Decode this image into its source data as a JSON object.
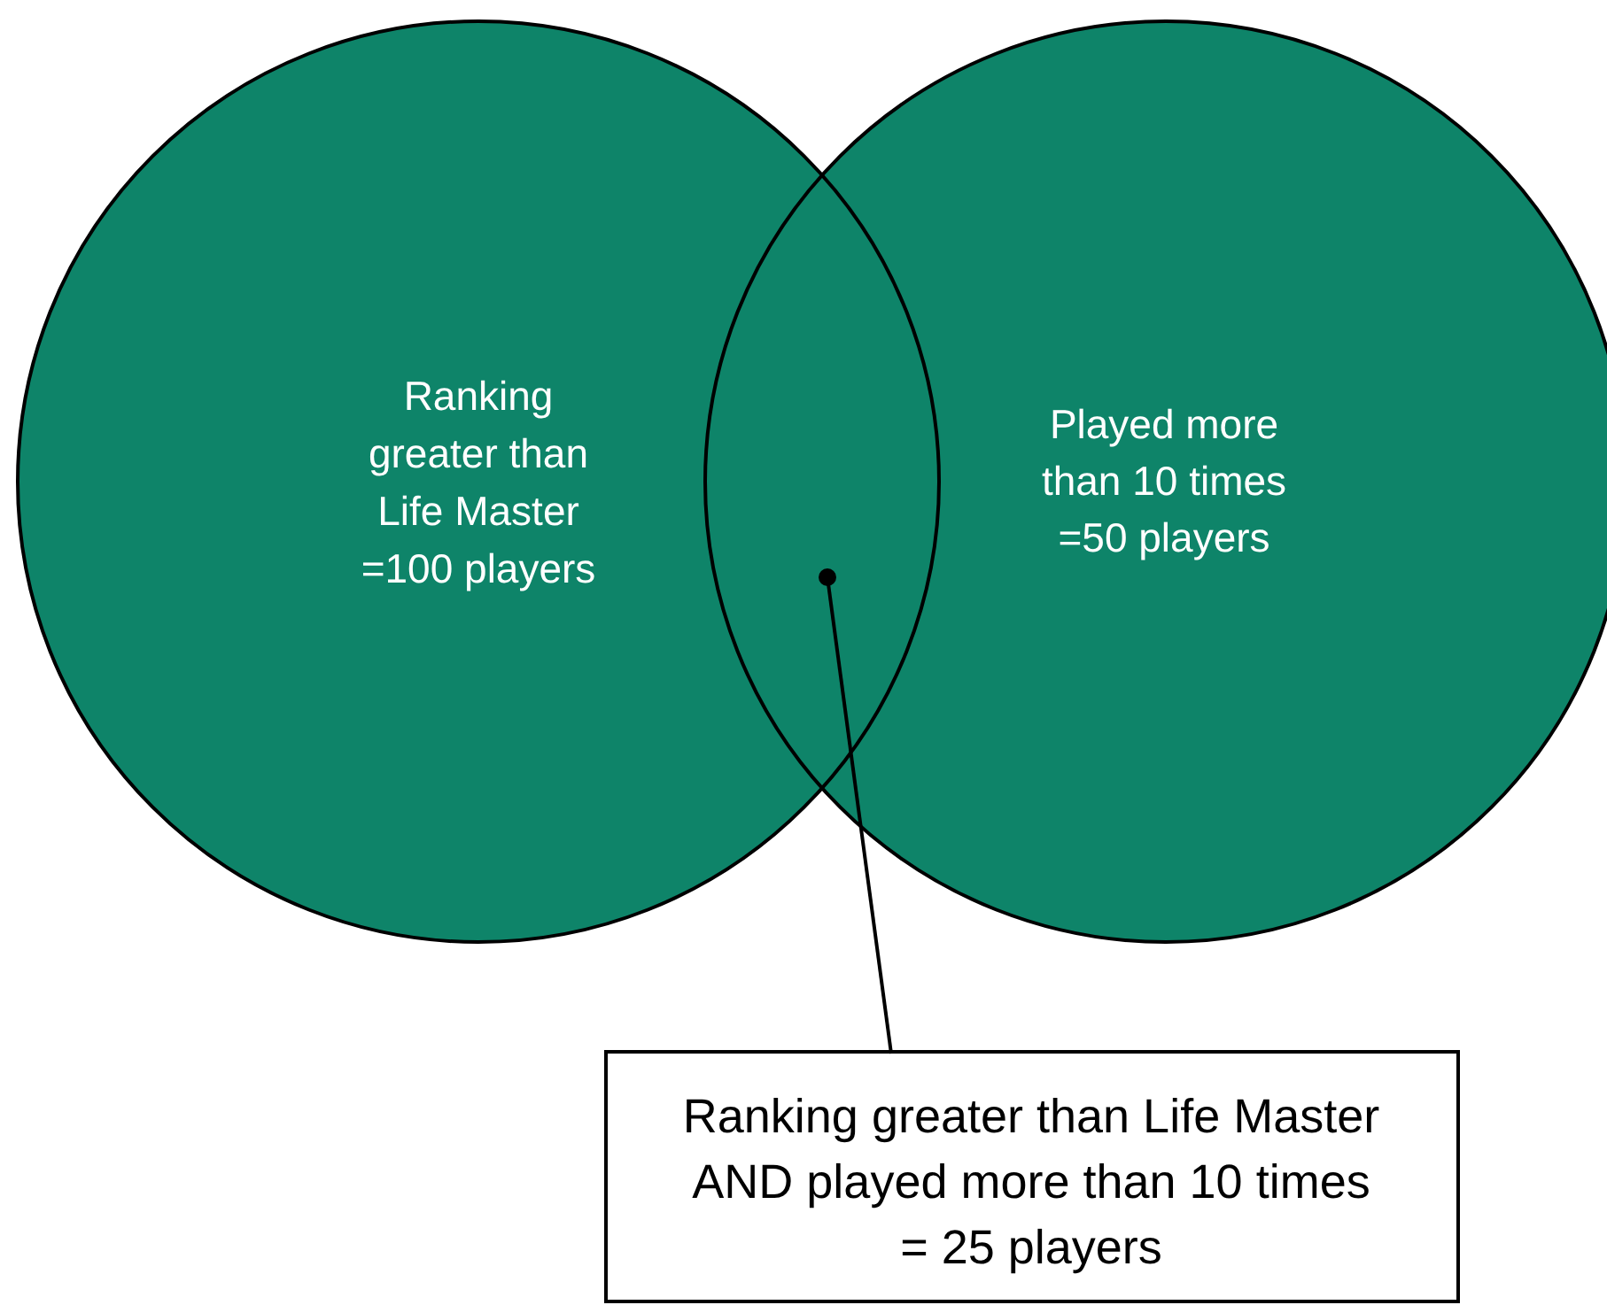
{
  "chart_data": {
    "type": "other",
    "categories": [
      "Ranking greater than Life Master",
      "Played more than 10 times",
      "Ranking greater than Life Master AND played more than 10 times"
    ],
    "values": [
      100,
      50,
      25
    ],
    "value_labels": [
      "=100 players",
      "=50 players",
      "= 25 players"
    ],
    "colors": [
      "#0e8469",
      "#0e8469",
      "#ffffff"
    ]
  }
}
